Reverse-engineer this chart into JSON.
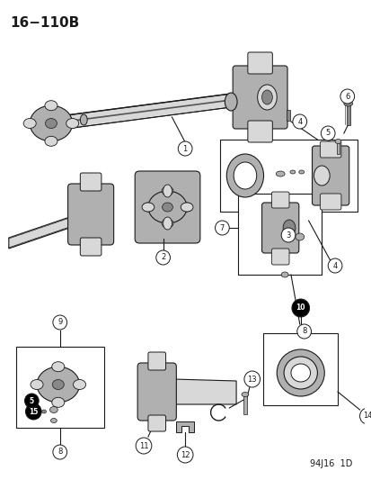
{
  "title": "16−110B",
  "footer": "94J16  1D",
  "bg_color": "#ffffff",
  "line_color": "#1a1a1a",
  "title_fontsize": 11,
  "footer_fontsize": 7,
  "gray_light": "#d8d8d8",
  "gray_mid": "#b0b0b0",
  "gray_dark": "#888888",
  "white": "#f5f5f5",
  "figsize": [
    4.14,
    5.33
  ],
  "dpi": 100
}
